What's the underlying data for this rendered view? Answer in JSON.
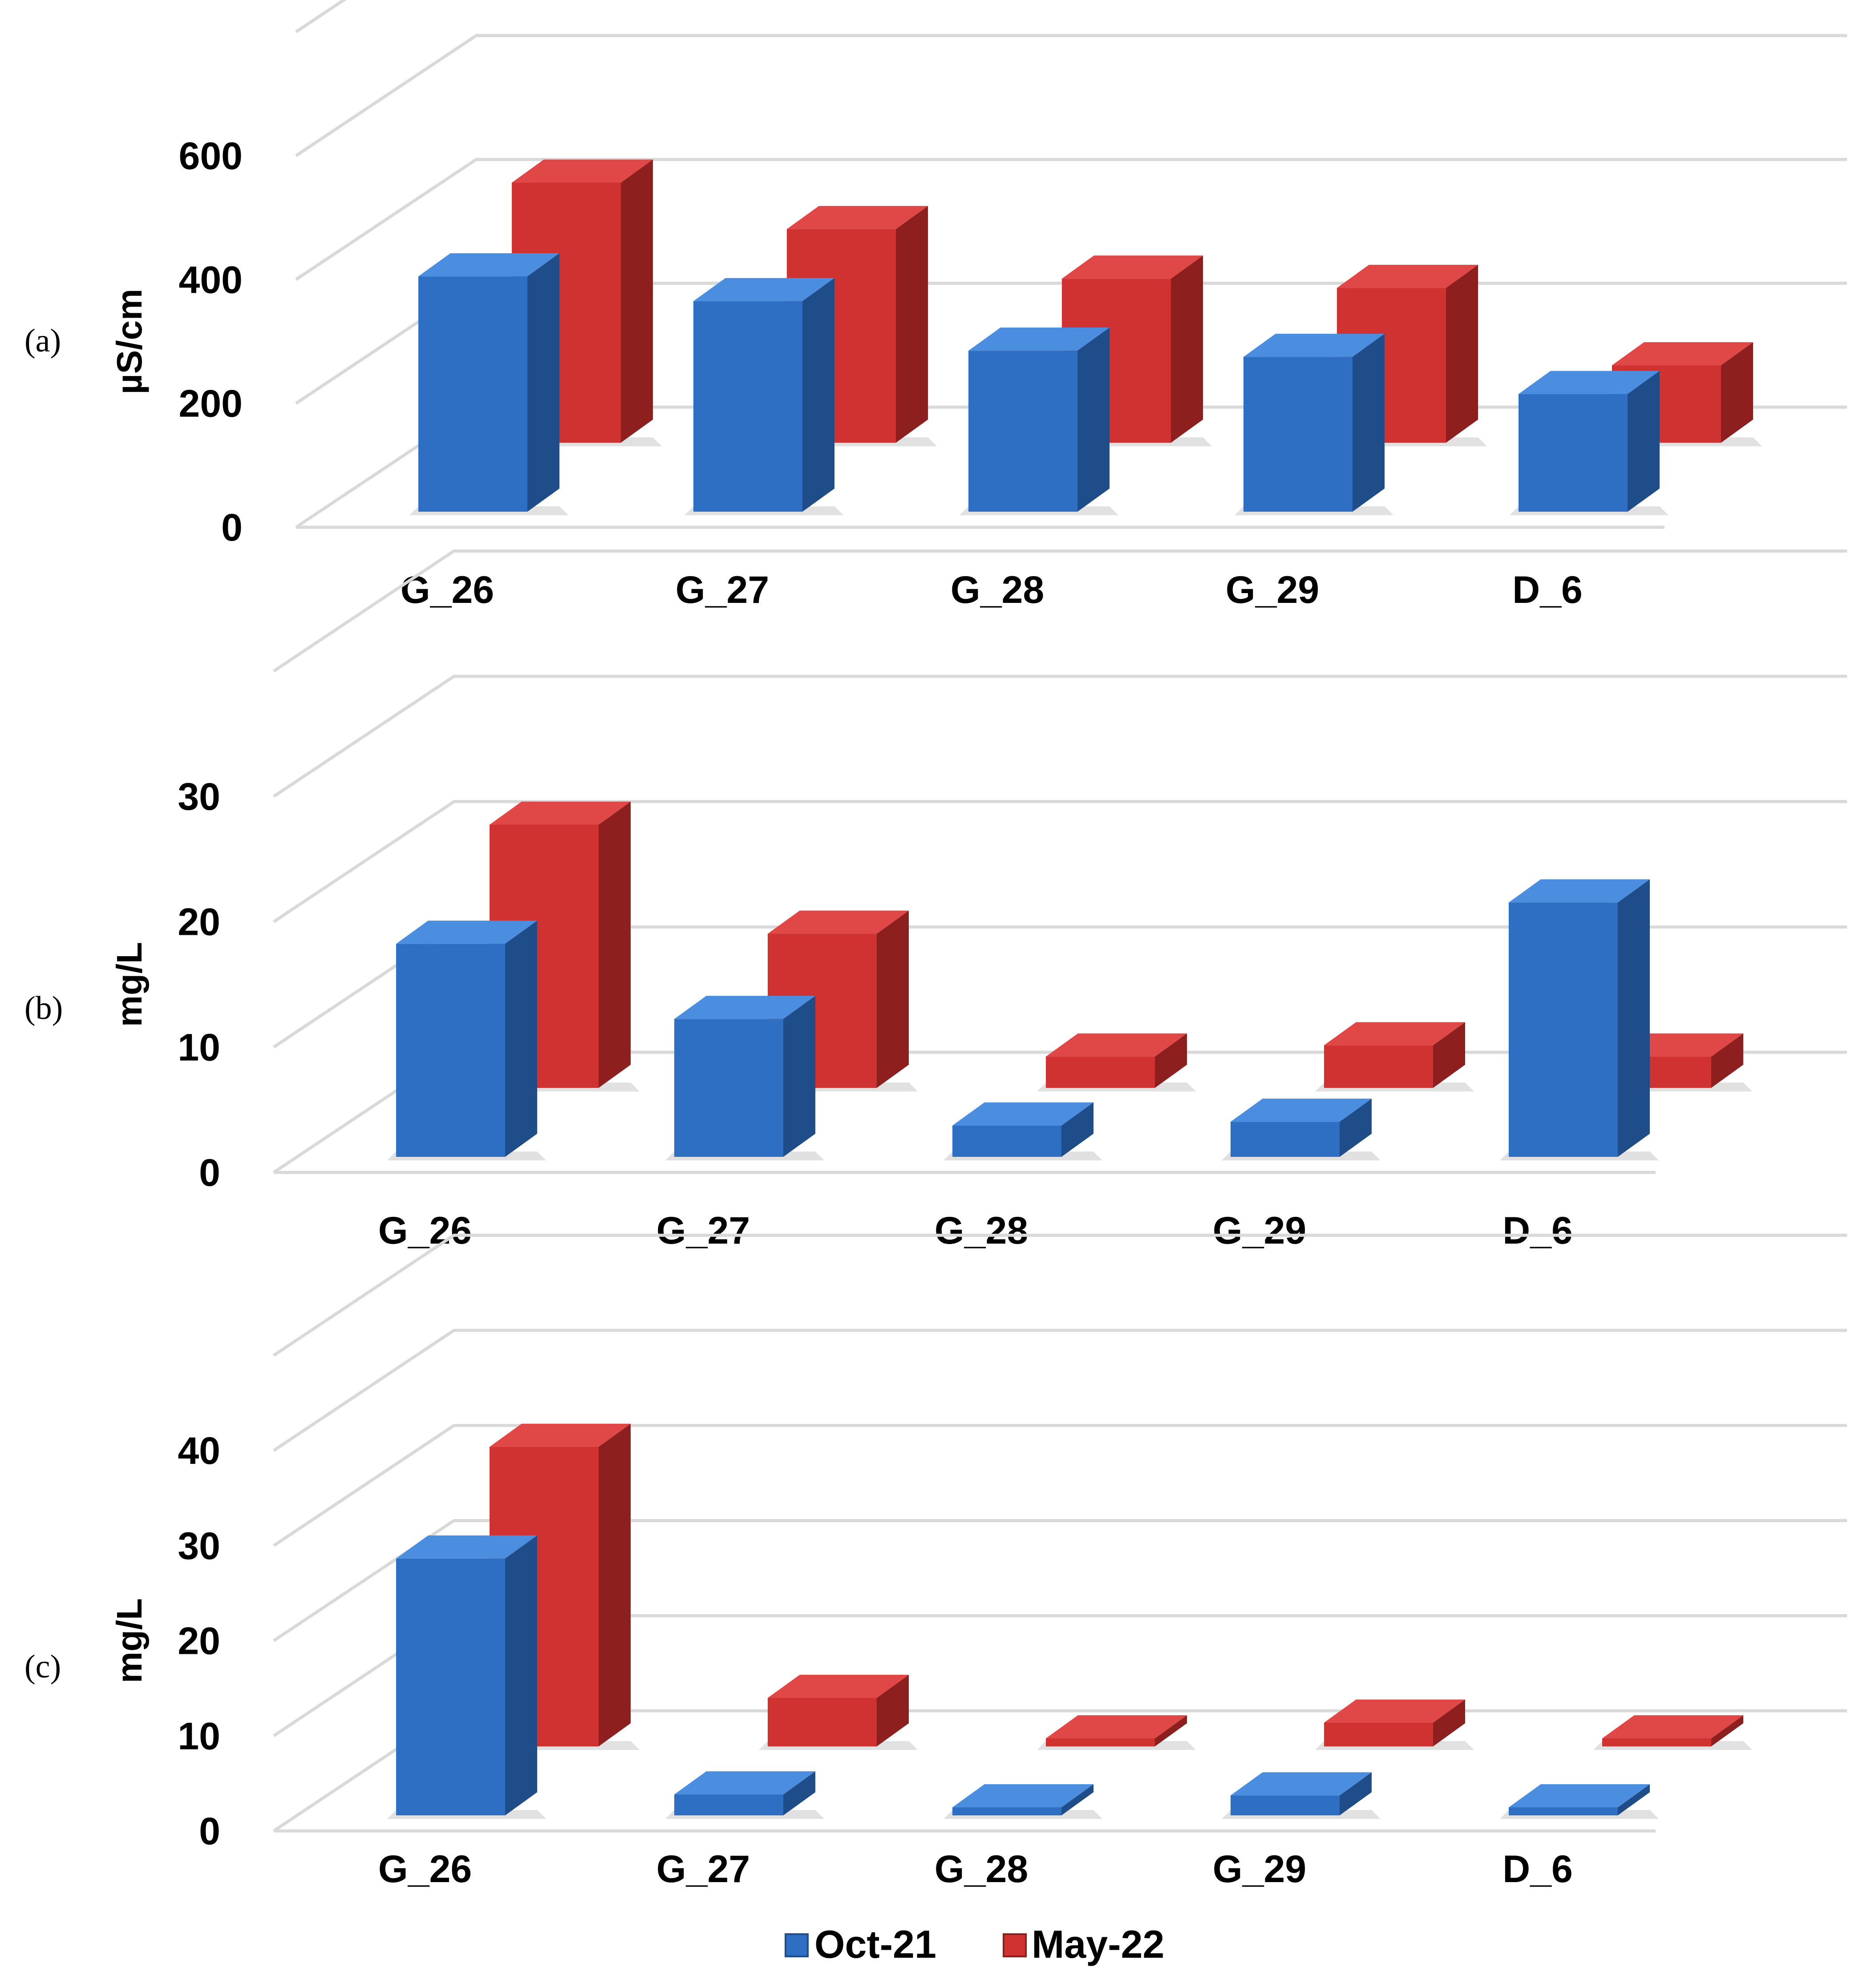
{
  "chart_data": [
    {
      "panel": "(a)",
      "type": "bar",
      "ylabel": "µS/cm",
      "ylim": [
        0,
        600
      ],
      "yticks": [
        "0",
        "200",
        "400",
        "600"
      ],
      "categories": [
        "G_26",
        "G_27",
        "G_28",
        "G_29",
        "D_6"
      ],
      "series": [
        {
          "name": "Oct-21",
          "values": [
            380,
            340,
            260,
            250,
            190
          ]
        },
        {
          "name": "May-22",
          "values": [
            420,
            345,
            265,
            250,
            125
          ]
        }
      ]
    },
    {
      "panel": "(b)",
      "type": "bar",
      "ylabel": "mg/L",
      "ylim": [
        0,
        30
      ],
      "yticks": [
        "0",
        "10",
        "20",
        "30"
      ],
      "categories": [
        "G_26",
        "G_27",
        "G_28",
        "G_29",
        "D_6"
      ],
      "series": [
        {
          "name": "Oct-21",
          "values": [
            17,
            11,
            2.5,
            2.8,
            20.3
          ]
        },
        {
          "name": "May-22",
          "values": [
            21,
            12.3,
            2.5,
            3.4,
            2.5
          ]
        }
      ]
    },
    {
      "panel": "(c)",
      "type": "bar",
      "ylabel": "mg/L",
      "ylim": [
        0,
        40
      ],
      "yticks": [
        "0",
        "10",
        "20",
        "30",
        "40"
      ],
      "categories": [
        "G_26",
        "G_27",
        "G_28",
        "G_29",
        "D_6"
      ],
      "series": [
        {
          "name": "Oct-21",
          "values": [
            27,
            2.2,
            0,
            2.1,
            0
          ]
        },
        {
          "name": "May-22",
          "values": [
            31.5,
            5.1,
            0,
            2.5,
            0
          ]
        }
      ]
    }
  ],
  "legend": [
    {
      "label": "Oct-21",
      "color": "#2e6fc4"
    },
    {
      "label": "May-22",
      "color": "#d03232"
    }
  ],
  "colors": {
    "oct_front": "#2e6fc4",
    "oct_side": "#1f4d8a",
    "oct_top": "#4b8ee0",
    "may_front": "#d03232",
    "may_side": "#8e1f1f",
    "may_top": "#e04848",
    "grid": "#d9d9d9"
  }
}
